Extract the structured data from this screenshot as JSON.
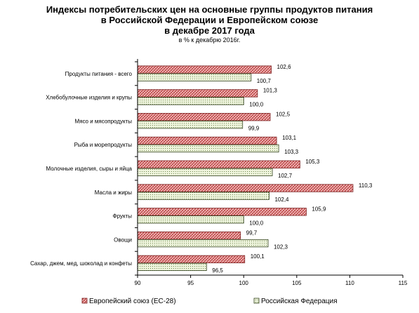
{
  "chart_data": {
    "type": "bar",
    "orientation": "horizontal",
    "title": "Индексы потребительских цен на основные группы продуктов питания в Российской Федерации и Европейском союзе в декабре 2017 года",
    "title_lines": [
      "Индексы потребительских цен на основные группы продуктов питания",
      "в Российской Федерации и Европейском союзе",
      "в декабре 2017 года"
    ],
    "subtitle": "в % к декабрю 2016г.",
    "categories": [
      "Продукты питания - всего",
      "Хлебобулочные изделия и крупы",
      "Мясо и мясопродукты",
      "Рыба и морепродукты",
      "Молочные изделия, сыры и яйца",
      "Масла и жиры",
      "Фрукты",
      "Овощи",
      "Сахар, джем, мед, шоколад и конфеты"
    ],
    "series": [
      {
        "name": "Европейский союз (ЕС-28)",
        "values": [
          102.6,
          101.3,
          102.5,
          103.1,
          105.3,
          110.3,
          105.9,
          99.7,
          100.1
        ],
        "value_labels": [
          "102,6",
          "101,3",
          "102,5",
          "103,1",
          "105,3",
          "110,3",
          "105,9",
          "99,7",
          "100,1"
        ],
        "fill": "#f2b8b8",
        "pattern": "#b03030"
      },
      {
        "name": "Российская Федерация",
        "values": [
          100.7,
          100.0,
          99.9,
          103.3,
          102.7,
          102.4,
          100.0,
          102.3,
          96.5
        ],
        "value_labels": [
          "100,7",
          "100,0",
          "99,9",
          "103,3",
          "102,7",
          "102,4",
          "100,0",
          "102,3",
          "96,5"
        ],
        "fill": "#e6f0d2",
        "pattern": "#4f6b2a"
      }
    ],
    "xlim": [
      90,
      115
    ],
    "xticks": [
      "90",
      "95",
      "100",
      "105",
      "110",
      "115"
    ],
    "xtick_values": [
      90,
      95,
      100,
      105,
      110,
      115
    ],
    "legend_position": "bottom",
    "grid": false
  }
}
